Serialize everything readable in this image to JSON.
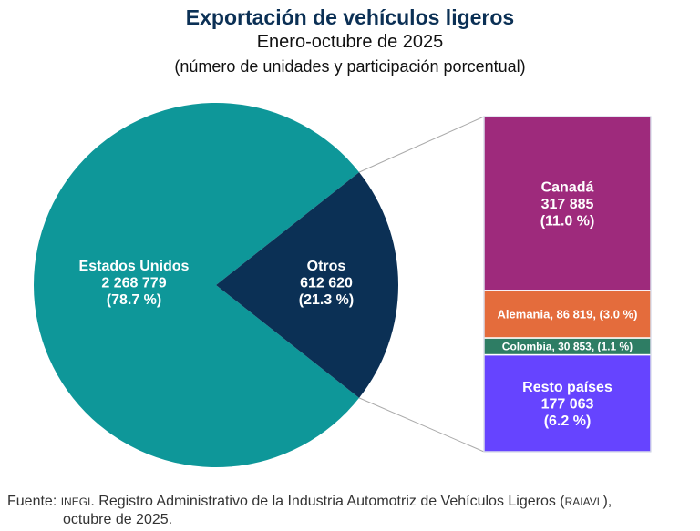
{
  "title": "Exportación de vehículos ligeros",
  "subtitle": "Enero-octubre de 2025",
  "units": "(número de unidades y participación porcentual)",
  "chart_data": {
    "type": "pie",
    "subtype": "pie-of-bar",
    "slices": [
      {
        "name": "Estados Unidos",
        "value": 2268779,
        "value_label": "2 268 779",
        "pct_label": "(78.7 %)",
        "color": "#0e9799"
      },
      {
        "name": "Otros",
        "value": 612620,
        "value_label": "612 620",
        "pct_label": "(21.3 %)",
        "color": "#0b3055"
      }
    ],
    "breakdown": [
      {
        "name": "Canadá",
        "value": 317885,
        "lines": [
          "Canadá",
          "317 885",
          "(11.0 %)"
        ],
        "color": "#9e2a7c"
      },
      {
        "name": "Alemania",
        "value": 86819,
        "lines": [
          "Alemania, 86 819, (3.0 %)"
        ],
        "color": "#e46c3c"
      },
      {
        "name": "Colombia",
        "value": 30853,
        "lines": [
          "Colombia,  30 853, (1.1 %)"
        ],
        "color": "#2e7d64"
      },
      {
        "name": "Resto países",
        "value": 177063,
        "lines": [
          "Resto países",
          "177 063",
          "(6.2 %)"
        ],
        "color": "#6644ff"
      }
    ]
  },
  "source": {
    "prefix": "Fuente: ",
    "org": "INEGI",
    "text": ". Registro Administrativo de la Industria Automotriz de Vehículos Ligeros (",
    "acronym": "RAIAVL",
    "end": "),",
    "line2": "octubre de 2025."
  }
}
